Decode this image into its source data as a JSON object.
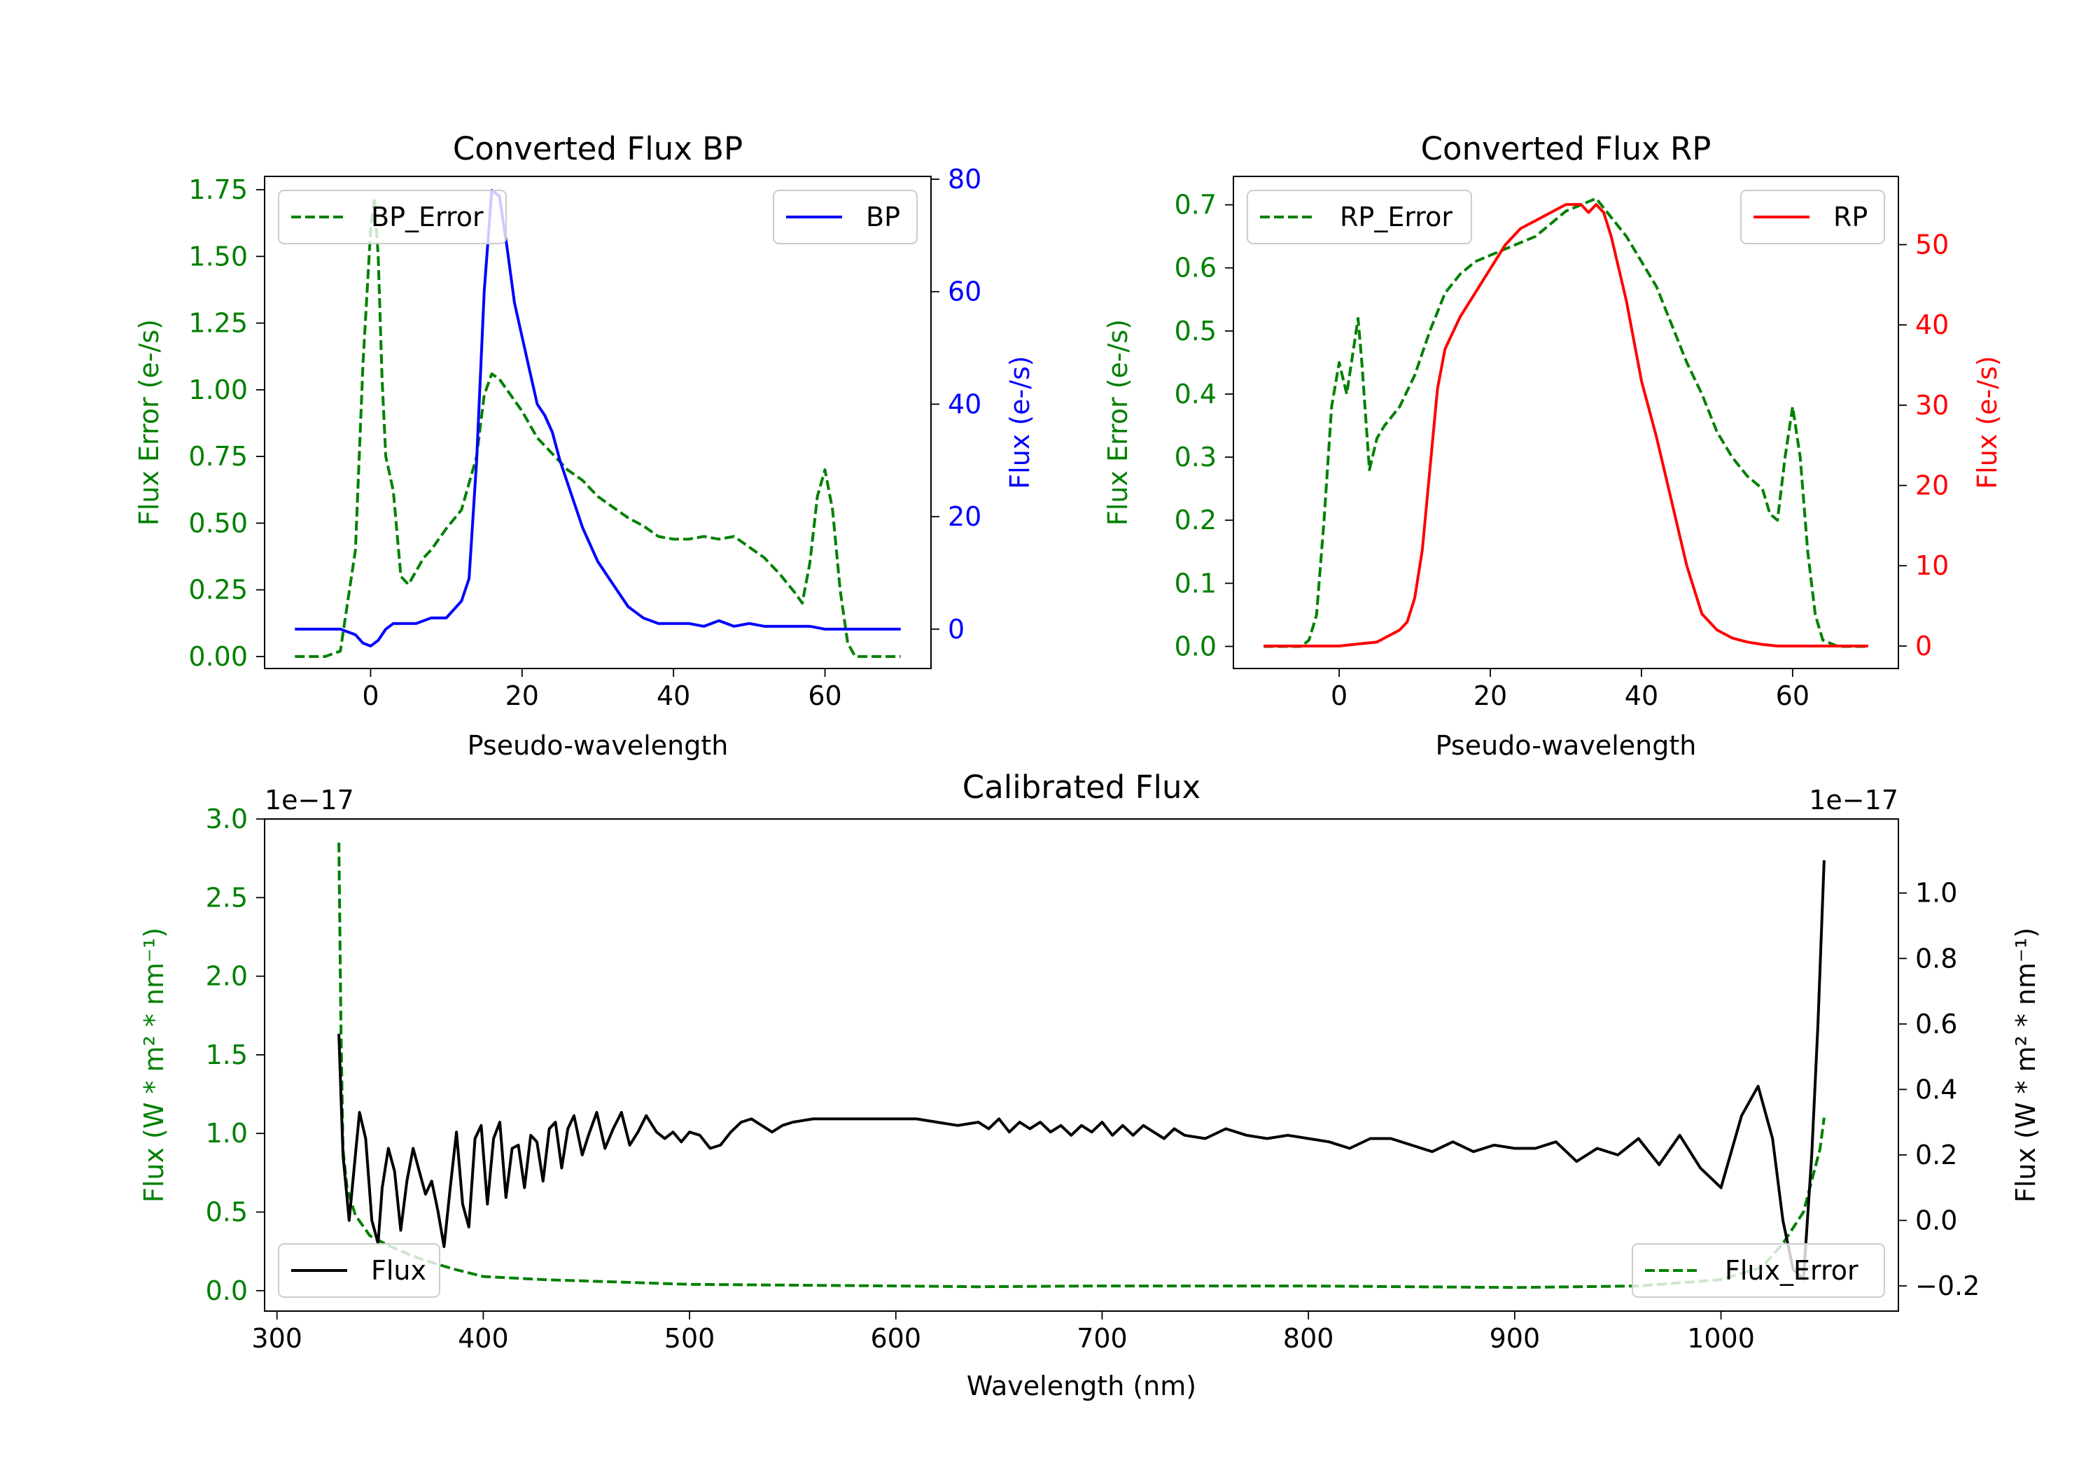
{
  "chart_data": [
    {
      "type": "line",
      "title": "Converted Flux BP",
      "xlabel": "Pseudo-wavelength",
      "xlim": [
        -14,
        74
      ],
      "xticks": [
        0,
        20,
        40,
        60
      ],
      "left_axis": {
        "label": "Flux Error (e-/s)",
        "color": "#008000",
        "ylim": [
          -0.045,
          1.8
        ],
        "ticks": [
          0.0,
          0.25,
          0.5,
          0.75,
          1.0,
          1.25,
          1.5,
          1.75
        ],
        "tick_labels": [
          "0.00",
          "0.25",
          "0.50",
          "0.75",
          "1.00",
          "1.25",
          "1.50",
          "1.75"
        ]
      },
      "right_axis": {
        "label": "Flux (e-/s)",
        "color": "#0000ff",
        "ylim": [
          -7,
          80.5
        ],
        "ticks": [
          0,
          20,
          40,
          60,
          80
        ],
        "tick_labels": [
          "0",
          "20",
          "40",
          "60",
          "80"
        ]
      },
      "series": [
        {
          "name": "BP_Error",
          "axis": "left",
          "color": "#008000",
          "style": "dashed",
          "x": [
            -10,
            -6,
            -4,
            -2,
            -1,
            0,
            0.5,
            1,
            1.5,
            2,
            3,
            4,
            5,
            6,
            7,
            8,
            10,
            12,
            14,
            15,
            16,
            17,
            18,
            20,
            22,
            24,
            26,
            28,
            30,
            32,
            34,
            36,
            38,
            40,
            42,
            44,
            46,
            48,
            50,
            52,
            54,
            56,
            57,
            58,
            59,
            60,
            61,
            62,
            63,
            64,
            66,
            70
          ],
          "y": [
            0.0,
            0.0,
            0.02,
            0.4,
            1.1,
            1.6,
            1.72,
            1.5,
            1.05,
            0.75,
            0.62,
            0.3,
            0.27,
            0.32,
            0.37,
            0.4,
            0.48,
            0.55,
            0.75,
            0.98,
            1.06,
            1.04,
            1.0,
            0.92,
            0.82,
            0.76,
            0.7,
            0.66,
            0.6,
            0.56,
            0.52,
            0.49,
            0.45,
            0.44,
            0.44,
            0.45,
            0.44,
            0.45,
            0.41,
            0.37,
            0.31,
            0.24,
            0.2,
            0.35,
            0.6,
            0.7,
            0.55,
            0.25,
            0.05,
            0.0,
            0.0,
            0.0
          ]
        },
        {
          "name": "BP",
          "axis": "right",
          "color": "#0000ff",
          "style": "solid",
          "x": [
            -10,
            -6,
            -4,
            -2,
            -1,
            0,
            1,
            2,
            3,
            4,
            6,
            8,
            10,
            12,
            13,
            14,
            15,
            16,
            17,
            18,
            19,
            20,
            21,
            22,
            23,
            24,
            25,
            26,
            27,
            28,
            30,
            32,
            34,
            36,
            38,
            40,
            42,
            44,
            46,
            48,
            50,
            52,
            54,
            56,
            58,
            60,
            62,
            64,
            66,
            70
          ],
          "y": [
            0,
            0,
            0,
            -1,
            -2.5,
            -3,
            -2,
            0,
            1,
            1,
            1,
            2,
            2,
            5,
            9,
            30,
            60,
            78,
            77,
            68,
            58,
            52,
            46,
            40,
            38,
            35,
            30,
            26,
            22,
            18,
            12,
            8,
            4,
            2,
            1,
            1,
            1,
            0.5,
            1.5,
            0.5,
            1,
            0.5,
            0.5,
            0.5,
            0.5,
            0,
            0,
            0,
            0,
            0
          ]
        }
      ],
      "legend": [
        {
          "label": "BP_Error",
          "placement": "upper-left"
        },
        {
          "label": "BP",
          "placement": "upper-right"
        }
      ]
    },
    {
      "type": "line",
      "title": "Converted Flux RP",
      "xlabel": "Pseudo-wavelength",
      "xlim": [
        -14,
        74
      ],
      "xticks": [
        0,
        20,
        40,
        60
      ],
      "left_axis": {
        "label": "Flux Error (e-/s)",
        "color": "#008000",
        "ylim": [
          -0.035,
          0.745
        ],
        "ticks": [
          0.0,
          0.1,
          0.2,
          0.3,
          0.4,
          0.5,
          0.6,
          0.7
        ],
        "tick_labels": [
          "0.0",
          "0.1",
          "0.2",
          "0.3",
          "0.4",
          "0.5",
          "0.6",
          "0.7"
        ]
      },
      "right_axis": {
        "label": "Flux (e-/s)",
        "color": "#ff0000",
        "ylim": [
          -2.8,
          58.5
        ],
        "ticks": [
          0,
          10,
          20,
          30,
          40,
          50
        ],
        "tick_labels": [
          "0",
          "10",
          "20",
          "30",
          "40",
          "50"
        ]
      },
      "series": [
        {
          "name": "RP_Error",
          "axis": "left",
          "color": "#008000",
          "style": "dashed",
          "x": [
            -10,
            -5,
            -4,
            -3,
            -2,
            -1,
            0,
            1,
            2,
            2.5,
            3,
            4,
            5,
            6,
            8,
            10,
            12,
            14,
            16,
            18,
            20,
            22,
            24,
            26,
            28,
            30,
            32,
            34,
            36,
            38,
            40,
            42,
            44,
            46,
            48,
            50,
            52,
            54,
            55,
            56,
            57,
            58,
            59,
            60,
            61,
            62,
            63,
            64,
            66,
            70
          ],
          "y": [
            0,
            0,
            0.01,
            0.05,
            0.2,
            0.38,
            0.45,
            0.4,
            0.48,
            0.52,
            0.45,
            0.28,
            0.33,
            0.35,
            0.38,
            0.43,
            0.5,
            0.56,
            0.59,
            0.61,
            0.62,
            0.63,
            0.64,
            0.65,
            0.67,
            0.69,
            0.7,
            0.71,
            0.68,
            0.65,
            0.61,
            0.57,
            0.51,
            0.45,
            0.4,
            0.34,
            0.3,
            0.27,
            0.26,
            0.25,
            0.21,
            0.2,
            0.3,
            0.38,
            0.3,
            0.15,
            0.05,
            0.01,
            0,
            0
          ]
        },
        {
          "name": "RP",
          "axis": "right",
          "color": "#ff0000",
          "style": "solid",
          "x": [
            -10,
            -4,
            0,
            3,
            5,
            8,
            9,
            10,
            11,
            12,
            13,
            14,
            16,
            18,
            20,
            22,
            24,
            26,
            28,
            30,
            32,
            33,
            34,
            35,
            36,
            38,
            40,
            42,
            44,
            46,
            48,
            50,
            52,
            54,
            56,
            58,
            60,
            62,
            64,
            66,
            70
          ],
          "y": [
            0,
            0,
            0,
            0.3,
            0.5,
            2,
            3,
            6,
            12,
            22,
            32,
            37,
            41,
            44,
            47,
            50,
            52,
            53,
            54,
            55,
            55,
            54,
            55,
            54,
            51,
            43,
            33,
            26,
            18,
            10,
            4,
            2,
            1,
            0.5,
            0.2,
            0,
            0,
            0,
            0,
            0,
            0
          ]
        }
      ],
      "legend": [
        {
          "label": "RP_Error",
          "placement": "upper-left"
        },
        {
          "label": "RP",
          "placement": "upper-right"
        }
      ]
    },
    {
      "type": "line",
      "title": "Calibrated Flux",
      "xlabel": "Wavelength (nm)",
      "xlim": [
        294,
        1086
      ],
      "xticks": [
        300,
        400,
        500,
        600,
        700,
        800,
        900,
        1000
      ],
      "left_axis": {
        "label": "Flux (W * m² * nm⁻¹)",
        "color": "#008000",
        "offset_text": "1e−17",
        "ylim": [
          -0.13,
          3.0
        ],
        "ticks": [
          0.0,
          0.5,
          1.0,
          1.5,
          2.0,
          2.5,
          3.0
        ],
        "tick_labels": [
          "0.0",
          "0.5",
          "1.0",
          "1.5",
          "2.0",
          "2.5",
          "3.0"
        ]
      },
      "right_axis": {
        "label": "Flux (W * m² * nm⁻¹)",
        "color": "#000000",
        "offset_text": "1e−17",
        "ylim": [
          -0.277,
          1.226
        ],
        "ticks": [
          -0.2,
          0.0,
          0.2,
          0.4,
          0.6,
          0.8,
          1.0
        ],
        "tick_labels": [
          "−0.2",
          "0.0",
          "0.2",
          "0.4",
          "0.6",
          "0.8",
          "1.0"
        ]
      },
      "series": [
        {
          "name": "Flux_Error",
          "axis": "left",
          "color": "#008000",
          "style": "dashed",
          "x": [
            330,
            331,
            332,
            334,
            338,
            345,
            355,
            370,
            385,
            400,
            430,
            500,
            600,
            640,
            700,
            800,
            900,
            960,
            1000,
            1020,
            1030,
            1040,
            1048,
            1050
          ],
          "y": [
            2.85,
            1.7,
            0.9,
            0.65,
            0.48,
            0.35,
            0.28,
            0.2,
            0.14,
            0.09,
            0.07,
            0.04,
            0.03,
            0.025,
            0.03,
            0.03,
            0.02,
            0.03,
            0.07,
            0.15,
            0.3,
            0.5,
            0.9,
            1.1
          ]
        },
        {
          "name": "Flux",
          "axis": "right",
          "color": "#000000",
          "style": "solid",
          "x": [
            330,
            332,
            335,
            338,
            340,
            343,
            346,
            349,
            351,
            354,
            357,
            360,
            363,
            366,
            369,
            372,
            375,
            378,
            381,
            384,
            387,
            390,
            393,
            396,
            399,
            402,
            405,
            408,
            411,
            414,
            417,
            420,
            423,
            426,
            429,
            432,
            435,
            438,
            441,
            444,
            448,
            451,
            455,
            459,
            463,
            467,
            471,
            475,
            479,
            484,
            488,
            492,
            496,
            500,
            505,
            510,
            515,
            520,
            525,
            530,
            535,
            540,
            545,
            550,
            560,
            570,
            580,
            590,
            600,
            610,
            620,
            630,
            640,
            645,
            650,
            655,
            660,
            665,
            670,
            675,
            680,
            685,
            690,
            695,
            700,
            705,
            710,
            715,
            720,
            725,
            730,
            735,
            740,
            750,
            760,
            770,
            780,
            790,
            800,
            810,
            820,
            830,
            840,
            850,
            860,
            870,
            880,
            890,
            900,
            910,
            920,
            930,
            940,
            950,
            960,
            970,
            980,
            990,
            1000,
            1010,
            1018,
            1025,
            1030,
            1035,
            1040,
            1044,
            1047,
            1050
          ],
          "y": [
            0.57,
            0.2,
            0.0,
            0.2,
            0.33,
            0.25,
            0.0,
            -0.07,
            0.1,
            0.22,
            0.15,
            -0.03,
            0.12,
            0.22,
            0.15,
            0.08,
            0.12,
            0.03,
            -0.08,
            0.1,
            0.27,
            0.05,
            -0.02,
            0.25,
            0.29,
            0.05,
            0.25,
            0.3,
            0.07,
            0.22,
            0.23,
            0.1,
            0.26,
            0.24,
            0.12,
            0.28,
            0.3,
            0.16,
            0.28,
            0.32,
            0.2,
            0.26,
            0.33,
            0.22,
            0.28,
            0.33,
            0.23,
            0.27,
            0.32,
            0.27,
            0.25,
            0.27,
            0.24,
            0.27,
            0.26,
            0.22,
            0.23,
            0.27,
            0.3,
            0.31,
            0.29,
            0.27,
            0.29,
            0.3,
            0.31,
            0.31,
            0.31,
            0.31,
            0.31,
            0.31,
            0.3,
            0.29,
            0.3,
            0.28,
            0.31,
            0.27,
            0.3,
            0.28,
            0.3,
            0.27,
            0.29,
            0.26,
            0.29,
            0.27,
            0.3,
            0.26,
            0.29,
            0.26,
            0.29,
            0.27,
            0.25,
            0.28,
            0.26,
            0.25,
            0.28,
            0.26,
            0.25,
            0.26,
            0.25,
            0.24,
            0.22,
            0.25,
            0.25,
            0.23,
            0.21,
            0.24,
            0.21,
            0.23,
            0.22,
            0.22,
            0.24,
            0.18,
            0.22,
            0.2,
            0.25,
            0.17,
            0.26,
            0.16,
            0.1,
            0.32,
            0.41,
            0.25,
            0.0,
            -0.15,
            -0.18,
            0.2,
            0.6,
            1.1
          ]
        }
      ],
      "legend": [
        {
          "label": "Flux",
          "placement": "lower-left"
        },
        {
          "label": "Flux_Error",
          "placement": "lower-right"
        }
      ]
    }
  ]
}
